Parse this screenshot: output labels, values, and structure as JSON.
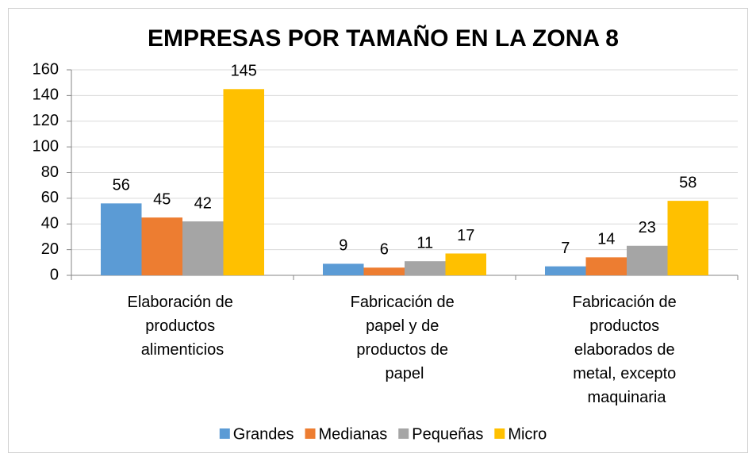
{
  "chart_data": {
    "type": "bar",
    "title": "EMPRESAS POR TAMAÑO EN LA ZONA 8",
    "categories": [
      "Elaboración de productos alimenticios",
      "Fabricación de papel y de productos de papel",
      "Fabricación de productos elaborados de metal, excepto maquinaria"
    ],
    "series": [
      {
        "name": "Grandes",
        "color": "#5b9bd5",
        "values": [
          56,
          9,
          7
        ]
      },
      {
        "name": "Medianas",
        "color": "#ed7d31",
        "values": [
          45,
          6,
          14
        ]
      },
      {
        "name": "Pequeñas",
        "color": "#a5a5a5",
        "values": [
          42,
          11,
          23
        ]
      },
      {
        "name": "Micro",
        "color": "#ffc000",
        "values": [
          145,
          17,
          58
        ]
      }
    ],
    "ylim": [
      0,
      160
    ],
    "yticks": [
      0,
      20,
      40,
      60,
      80,
      100,
      120,
      140,
      160
    ],
    "grid": true,
    "legend": "bottom"
  }
}
